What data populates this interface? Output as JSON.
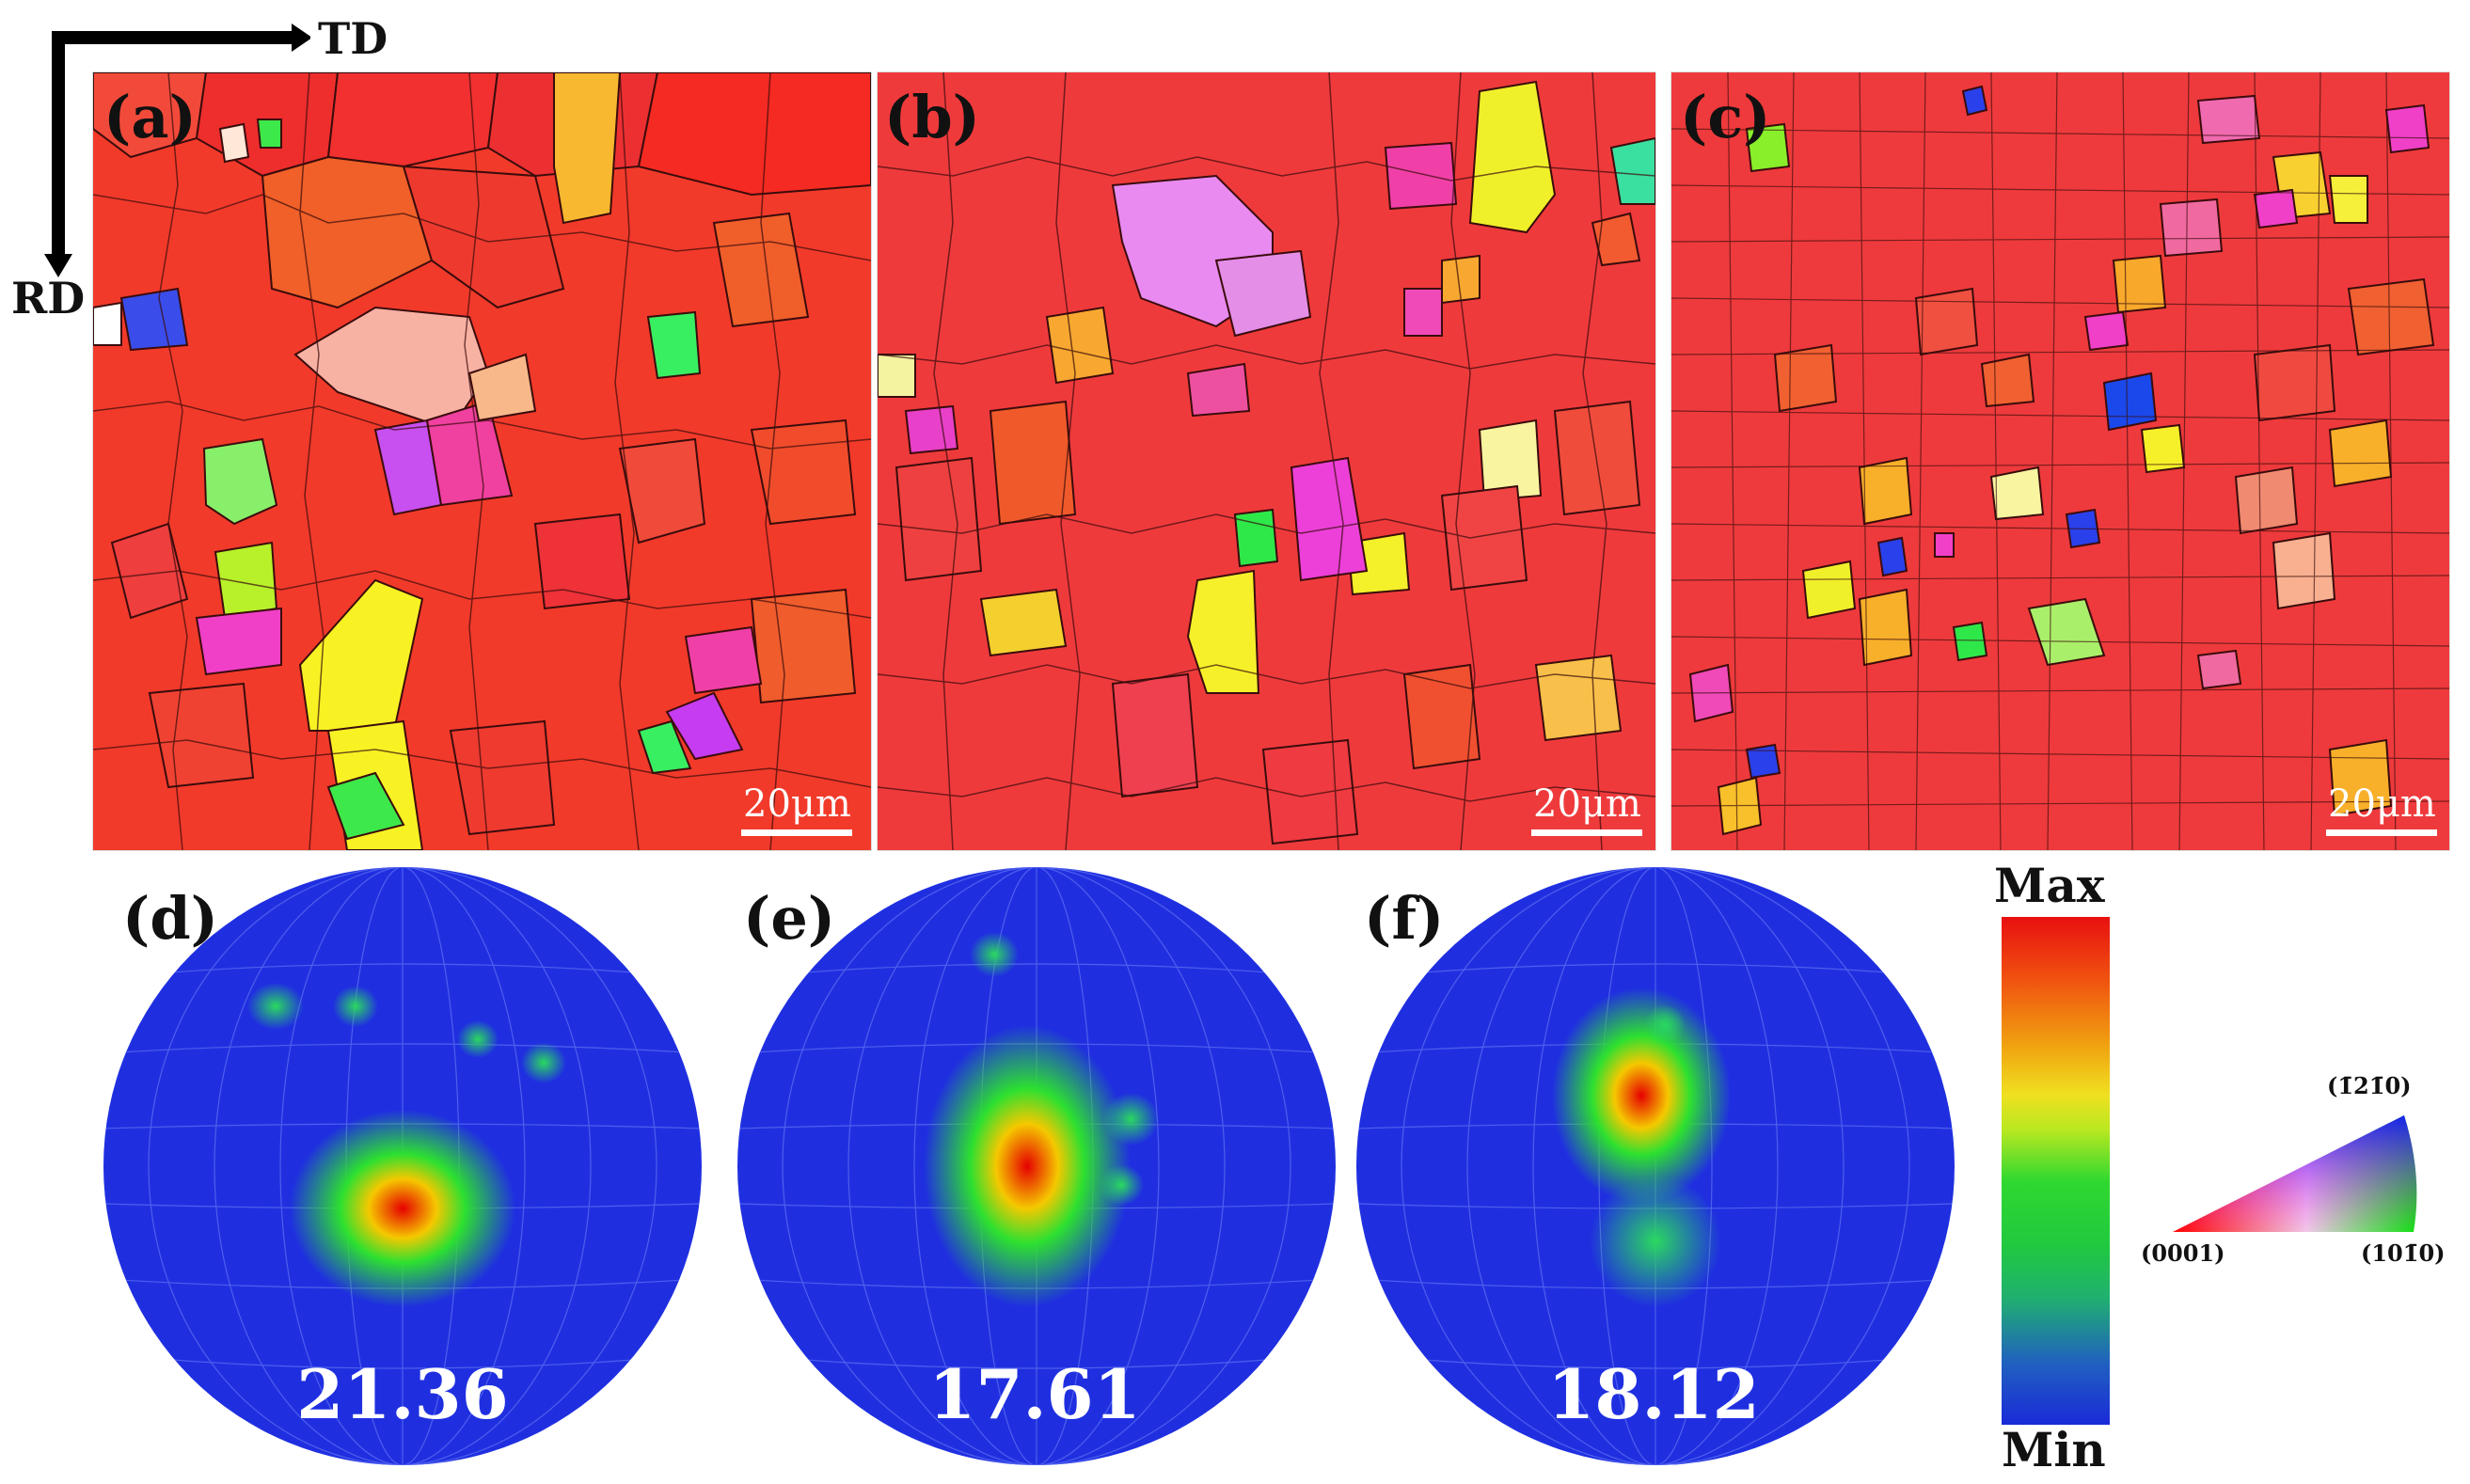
{
  "axes": {
    "td": "TD",
    "rd": "RD"
  },
  "maps": [
    {
      "label": "(a)",
      "scale": "20μm"
    },
    {
      "label": "(b)",
      "scale": "20μm"
    },
    {
      "label": "(c)",
      "scale": "20μm"
    }
  ],
  "pole_figures": [
    {
      "label": "(d)",
      "value": "21.36"
    },
    {
      "label": "(e)",
      "value": "17.61"
    },
    {
      "label": "(f)",
      "value": "18.12"
    }
  ],
  "colorbar": {
    "max": "Max",
    "min": "Min"
  },
  "ipf_key": {
    "top_label_prefix": "(",
    "top": "(1̄21̄0)",
    "left": "(0001)",
    "right": "(101̄0)"
  },
  "colors": {
    "dominant_red": "#f52a1e",
    "grain_boundary": "#2a0a0a",
    "pf_background": "#1f2fe0",
    "pf_grid": "#5a6cf0"
  }
}
